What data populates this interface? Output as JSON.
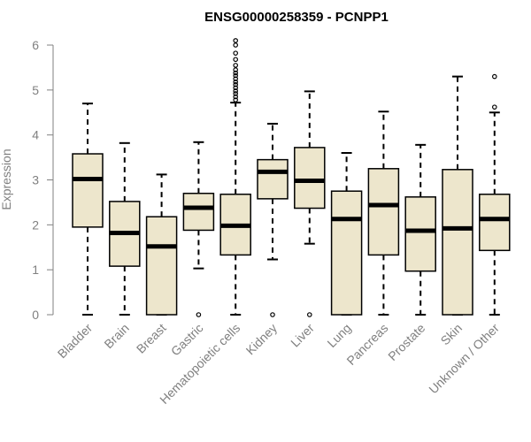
{
  "chart_data": {
    "type": "box",
    "title": "ENSG00000258359 - PCNPP1",
    "xlabel": "",
    "ylabel": "Expression",
    "ylim": [
      0,
      6.1
    ],
    "yticks": [
      0,
      1,
      2,
      3,
      4,
      5,
      6
    ],
    "grid": false,
    "colors": {
      "box_fill": "#ede6cc",
      "box_stroke": "#000000",
      "axis": "#808080",
      "text": "#808080"
    },
    "categories": [
      "Bladder",
      "Brain",
      "Breast",
      "Gastric",
      "Hematopoietic cells",
      "Kidney",
      "Liver",
      "Lung",
      "Pancreas",
      "Prostate",
      "Skin",
      "Unknown / Other"
    ],
    "boxes": [
      {
        "name": "Bladder",
        "whisker_low": 0,
        "q1": 1.95,
        "median": 3.02,
        "q3": 3.58,
        "whisker_high": 4.7,
        "outliers": []
      },
      {
        "name": "Brain",
        "whisker_low": 0,
        "q1": 1.08,
        "median": 1.82,
        "q3": 2.52,
        "whisker_high": 3.82,
        "outliers": []
      },
      {
        "name": "Breast",
        "whisker_low": 0,
        "q1": 0,
        "median": 1.52,
        "q3": 2.18,
        "whisker_high": 3.12,
        "outliers": []
      },
      {
        "name": "Gastric",
        "whisker_low": 1.03,
        "q1": 1.88,
        "median": 2.38,
        "q3": 2.7,
        "whisker_high": 3.84,
        "outliers": [
          0
        ]
      },
      {
        "name": "Hematopoietic cells",
        "whisker_low": 0,
        "q1": 1.33,
        "median": 1.98,
        "q3": 2.68,
        "whisker_high": 4.72,
        "outliers": [
          4.78,
          4.85,
          4.92,
          4.98,
          5.05,
          5.12,
          5.18,
          5.25,
          5.32,
          5.38,
          5.45,
          5.55,
          5.68,
          5.82,
          6.0,
          6.1
        ]
      },
      {
        "name": "Kidney",
        "whisker_low": 1.23,
        "q1": 2.58,
        "median": 3.18,
        "q3": 3.45,
        "whisker_high": 4.25,
        "outliers": [
          0
        ]
      },
      {
        "name": "Liver",
        "whisker_low": 1.58,
        "q1": 2.37,
        "median": 2.98,
        "q3": 3.72,
        "whisker_high": 4.97,
        "outliers": [
          0
        ]
      },
      {
        "name": "Lung",
        "whisker_low": 0,
        "q1": 0,
        "median": 2.13,
        "q3": 2.75,
        "whisker_high": 3.6,
        "outliers": []
      },
      {
        "name": "Pancreas",
        "whisker_low": 0,
        "q1": 1.33,
        "median": 2.44,
        "q3": 3.25,
        "whisker_high": 4.52,
        "outliers": []
      },
      {
        "name": "Prostate",
        "whisker_low": 0,
        "q1": 0.97,
        "median": 1.87,
        "q3": 2.62,
        "whisker_high": 3.78,
        "outliers": []
      },
      {
        "name": "Skin",
        "whisker_low": 0,
        "q1": 0,
        "median": 1.92,
        "q3": 3.23,
        "whisker_high": 5.3,
        "outliers": []
      },
      {
        "name": "Unknown / Other",
        "whisker_low": 0,
        "q1": 1.43,
        "median": 2.13,
        "q3": 2.68,
        "whisker_high": 4.5,
        "outliers": [
          4.62,
          5.3
        ]
      }
    ]
  }
}
